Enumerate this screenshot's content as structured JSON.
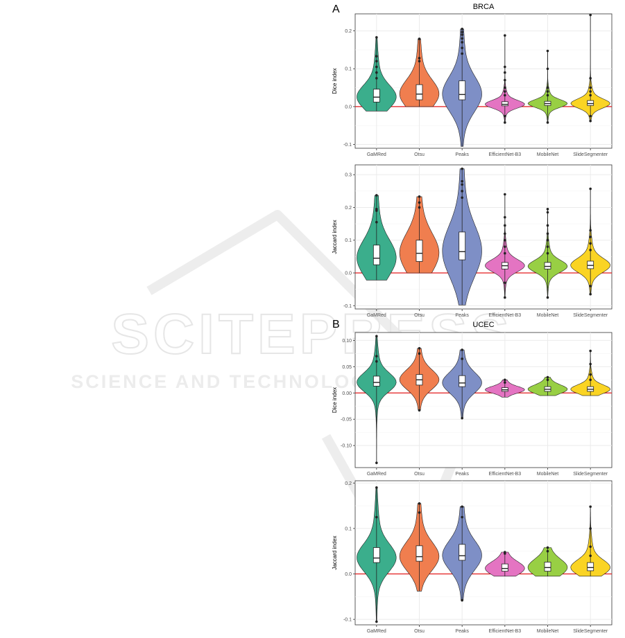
{
  "figure": {
    "panel_a_letter": "A",
    "panel_b_letter": "B",
    "watermark": {
      "big": "SCITEPRESS",
      "small": "SCIENCE AND TECHNOLOGY PUBLICATIONS"
    }
  },
  "colors": {
    "GaMRed": "#3BAE8C",
    "Otsu": "#F07E4F",
    "Peaks": "#7E8FC6",
    "EfficientNet-B3": "#E474C2",
    "MobileNet": "#98CF44",
    "SlideSegmenter": "#FAD424",
    "zero_line": "#E31A1C",
    "grid": "#EBEBEB",
    "points": "#222222"
  },
  "chart_data": [
    {
      "id": "brca-dice",
      "type": "violin",
      "title": "BRCA",
      "xlabel": "",
      "ylabel": "Dice index",
      "ylim": [
        -0.11,
        0.245
      ],
      "yticks": [
        -0.1,
        0.0,
        0.1,
        0.2
      ],
      "ytick_labels": [
        "-0.1",
        "0.0",
        "0.1",
        "0.2"
      ],
      "grid": true,
      "reference_line": 0,
      "categories": [
        "GaMRed",
        "Otsu",
        "Peaks",
        "EfficientNet-B3",
        "MobileNet",
        "SlideSegmenter"
      ],
      "series": [
        {
          "q1": 0.012,
          "median": 0.025,
          "q3": 0.046,
          "min": -0.012,
          "max": 0.183,
          "outliers": [
            0.075,
            0.09,
            0.105,
            0.12,
            0.133,
            0.183
          ]
        },
        {
          "q1": 0.018,
          "median": 0.033,
          "q3": 0.058,
          "min": 0.0,
          "max": 0.179,
          "outliers": [
            0.12,
            0.128,
            0.179
          ]
        },
        {
          "q1": 0.018,
          "median": 0.032,
          "q3": 0.068,
          "min": -0.105,
          "max": 0.205,
          "outliers": [
            0.14,
            0.155,
            0.17,
            0.18,
            0.19,
            0.197,
            0.205
          ]
        },
        {
          "q1": 0.002,
          "median": 0.006,
          "q3": 0.013,
          "min": -0.042,
          "max": 0.188,
          "outliers": [
            -0.042,
            -0.025,
            0.03,
            0.04,
            0.05,
            0.07,
            0.09,
            0.105,
            0.188
          ]
        },
        {
          "q1": 0.003,
          "median": 0.008,
          "q3": 0.014,
          "min": -0.042,
          "max": 0.147,
          "outliers": [
            -0.042,
            0.03,
            0.04,
            0.05,
            0.1,
            0.147
          ]
        },
        {
          "q1": 0.003,
          "median": 0.008,
          "q3": 0.016,
          "min": -0.038,
          "max": 0.242,
          "outliers": [
            -0.038,
            -0.025,
            0.03,
            0.04,
            0.05,
            0.075,
            0.242
          ]
        }
      ]
    },
    {
      "id": "brca-jaccard",
      "type": "violin",
      "title": "",
      "xlabel": "",
      "ylabel": "Jaccard index",
      "ylim": [
        -0.11,
        0.33
      ],
      "yticks": [
        -0.1,
        0.0,
        0.1,
        0.2,
        0.3
      ],
      "ytick_labels": [
        "-0.1",
        "0.0",
        "0.1",
        "0.2",
        "0.3"
      ],
      "grid": true,
      "reference_line": 0,
      "categories": [
        "GaMRed",
        "Otsu",
        "Peaks",
        "EfficientNet-B3",
        "MobileNet",
        "SlideSegmenter"
      ],
      "series": [
        {
          "q1": 0.025,
          "median": 0.045,
          "q3": 0.085,
          "min": -0.022,
          "max": 0.237,
          "outliers": [
            0.155,
            0.19,
            0.195,
            0.237
          ]
        },
        {
          "q1": 0.035,
          "median": 0.06,
          "q3": 0.1,
          "min": 0.0,
          "max": 0.233,
          "outliers": [
            0.2,
            0.215,
            0.233
          ]
        },
        {
          "q1": 0.04,
          "median": 0.065,
          "q3": 0.125,
          "min": -0.098,
          "max": 0.318,
          "outliers": [
            0.23,
            0.25,
            0.27,
            0.28,
            0.318
          ]
        },
        {
          "q1": 0.012,
          "median": 0.022,
          "q3": 0.032,
          "min": -0.075,
          "max": 0.24,
          "outliers": [
            -0.075,
            -0.03,
            0.06,
            0.08,
            0.1,
            0.12,
            0.145,
            0.17,
            0.24
          ]
        },
        {
          "q1": 0.012,
          "median": 0.02,
          "q3": 0.032,
          "min": -0.075,
          "max": 0.195,
          "outliers": [
            -0.075,
            0.06,
            0.08,
            0.1,
            0.12,
            0.145,
            0.185,
            0.195
          ]
        },
        {
          "q1": 0.013,
          "median": 0.023,
          "q3": 0.036,
          "min": -0.065,
          "max": 0.257,
          "outliers": [
            -0.065,
            -0.04,
            0.07,
            0.09,
            0.11,
            0.13,
            0.257
          ]
        }
      ]
    },
    {
      "id": "ucec-dice",
      "type": "violin",
      "title": "UCEC",
      "xlabel": "",
      "ylabel": "Dice index",
      "ylim": [
        -0.142,
        0.115
      ],
      "yticks": [
        -0.1,
        -0.05,
        0.0,
        0.05,
        0.1
      ],
      "ytick_labels": [
        "-0.10",
        "-0.05",
        "0.00",
        "0.05",
        "0.10"
      ],
      "grid": true,
      "reference_line": 0,
      "categories": [
        "GaMRed",
        "Otsu",
        "Peaks",
        "EfficientNet-B3",
        "MobileNet",
        "SlideSegmenter"
      ],
      "series": [
        {
          "q1": 0.013,
          "median": 0.02,
          "q3": 0.032,
          "min": -0.133,
          "max": 0.108,
          "outliers": [
            0.06,
            0.07,
            0.108,
            -0.133
          ]
        },
        {
          "q1": 0.015,
          "median": 0.025,
          "q3": 0.035,
          "min": -0.033,
          "max": 0.085,
          "outliers": [
            0.075,
            0.085,
            -0.033
          ]
        },
        {
          "q1": 0.012,
          "median": 0.019,
          "q3": 0.033,
          "min": -0.048,
          "max": 0.082,
          "outliers": [
            0.065,
            0.082,
            -0.048
          ]
        },
        {
          "q1": 0.003,
          "median": 0.006,
          "q3": 0.01,
          "min": -0.008,
          "max": 0.025,
          "outliers": [
            0.02,
            0.025
          ]
        },
        {
          "q1": 0.003,
          "median": 0.007,
          "q3": 0.012,
          "min": -0.005,
          "max": 0.03,
          "outliers": [
            0.025,
            0.03
          ]
        },
        {
          "q1": 0.003,
          "median": 0.007,
          "q3": 0.012,
          "min": -0.005,
          "max": 0.08,
          "outliers": [
            0.025,
            0.035,
            0.055,
            0.08
          ]
        }
      ]
    },
    {
      "id": "ucec-jaccard",
      "type": "violin",
      "title": "",
      "xlabel": "",
      "ylabel": "Jaccard index",
      "ylim": [
        -0.112,
        0.205
      ],
      "yticks": [
        -0.1,
        0.0,
        0.1,
        0.2
      ],
      "ytick_labels": [
        "-0.1",
        "0.0",
        "0.1",
        "0.2"
      ],
      "grid": true,
      "reference_line": 0,
      "categories": [
        "GaMRed",
        "Otsu",
        "Peaks",
        "EfficientNet-B3",
        "MobileNet",
        "SlideSegmenter"
      ],
      "series": [
        {
          "q1": 0.025,
          "median": 0.035,
          "q3": 0.058,
          "min": -0.105,
          "max": 0.19,
          "outliers": [
            0.125,
            0.19,
            -0.105
          ]
        },
        {
          "q1": 0.028,
          "median": 0.038,
          "q3": 0.062,
          "min": -0.038,
          "max": 0.155,
          "outliers": [
            0.135,
            0.155
          ]
        },
        {
          "q1": 0.03,
          "median": 0.04,
          "q3": 0.065,
          "min": -0.058,
          "max": 0.148,
          "outliers": [
            0.125,
            0.148,
            -0.058
          ]
        },
        {
          "q1": 0.006,
          "median": 0.012,
          "q3": 0.022,
          "min": -0.005,
          "max": 0.048,
          "outliers": [
            0.045,
            0.048
          ]
        },
        {
          "q1": 0.006,
          "median": 0.014,
          "q3": 0.026,
          "min": -0.005,
          "max": 0.058,
          "outliers": [
            0.05,
            0.058
          ]
        },
        {
          "q1": 0.007,
          "median": 0.014,
          "q3": 0.025,
          "min": -0.005,
          "max": 0.148,
          "outliers": [
            0.04,
            0.06,
            0.1,
            0.148
          ]
        }
      ]
    }
  ]
}
